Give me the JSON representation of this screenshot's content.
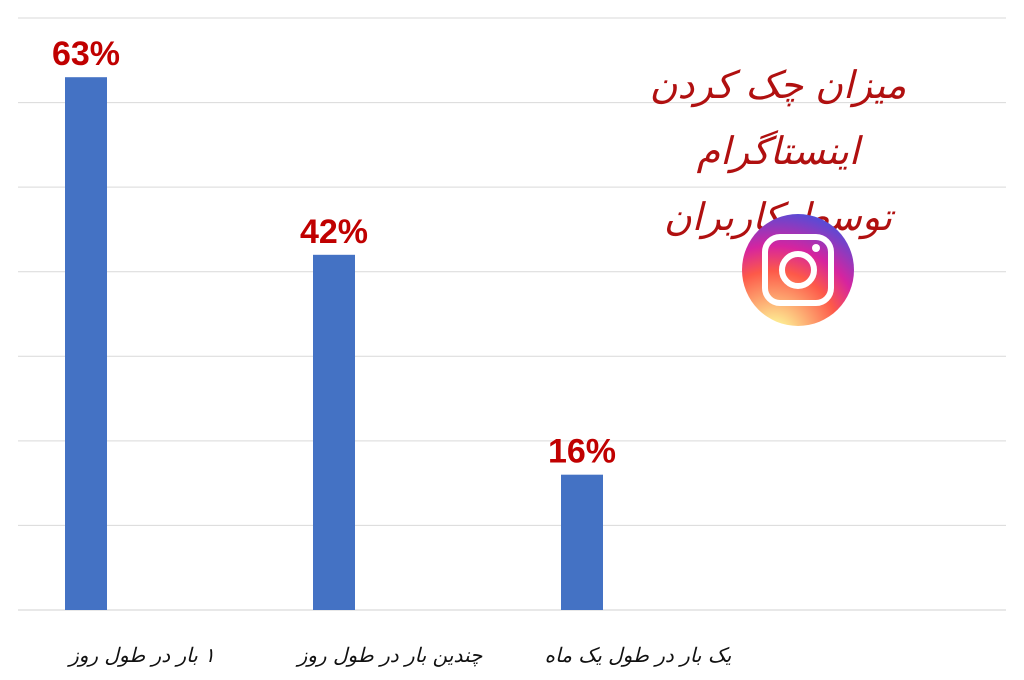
{
  "chart_data": {
    "type": "bar",
    "title_lines": [
      "میزان چک کردن اینستاگرام",
      "توسط کاربران"
    ],
    "categories": [
      "۱ بار در طول روز",
      "چندین بار در طول روز",
      "یک بار در طول یک ماه"
    ],
    "values": [
      63,
      42,
      16
    ],
    "data_labels": [
      "63%",
      "42%",
      "16%"
    ],
    "ylim": [
      0,
      70
    ],
    "grid": true,
    "legend": "none",
    "colors": {
      "bar": "#4472c4",
      "label": "#c00000",
      "grid": "#d9d9d9",
      "title": "#b01010"
    }
  },
  "logo": {
    "icon": "instagram-icon"
  }
}
